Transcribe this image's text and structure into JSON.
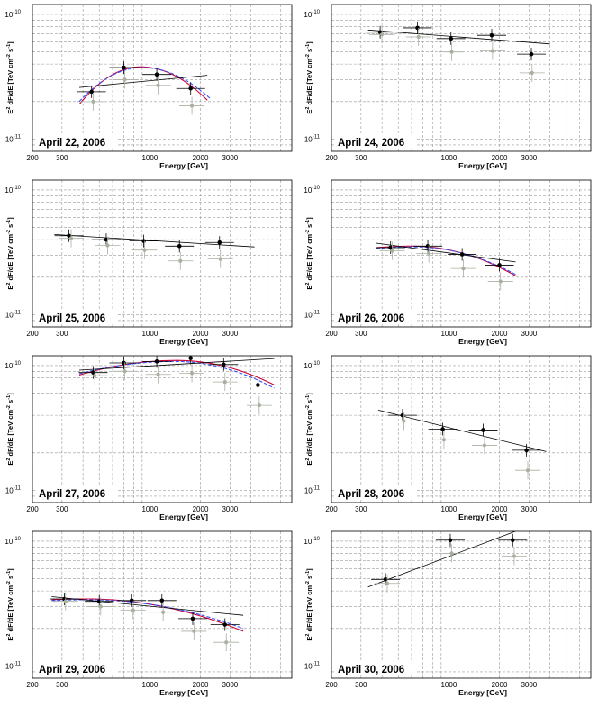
{
  "figure": {
    "ylabel_top": "E",
    "ylabel_sup": "2",
    "ylabel_frac_num": "dF",
    "ylabel_frac_den": "dE",
    "ylabel_units": "[TeV cm",
    "ylabel_units_sup": "-2",
    "ylabel_units_mid": " s",
    "ylabel_units_sup2": "-1",
    "ylabel_units_end": "]",
    "ytick_top": "10",
    "ytick_top_exp": "-10",
    "ytick_bottom": "10",
    "ytick_bottom_exp": "-11"
  },
  "chart_data": [
    {
      "type": "scatter",
      "title": "April 22, 2006",
      "xlabel": "Energy [GeV]",
      "xscale": "log",
      "yscale": "log",
      "xlim": [
        200,
        7000
      ],
      "ylim": [
        8e-12,
        1.2e-10
      ],
      "xticks": [
        "200",
        "300",
        "1000",
        "2000",
        "3000"
      ],
      "series": [
        {
          "role": "black",
          "x": [
            450,
            700,
            1100,
            1750
          ],
          "y": [
            2.4e-11,
            3.75e-11,
            3.3e-11,
            2.55e-11
          ]
        },
        {
          "role": "grey",
          "x": [
            460,
            710,
            1120,
            1780
          ],
          "y": [
            2e-11,
            3e-11,
            2.7e-11,
            1.85e-11
          ]
        }
      ],
      "fits": [
        {
          "kind": "curved",
          "color": "#cc0033",
          "x": [
            380,
            2200
          ],
          "peak_x": 880,
          "peak_y": 3.8e-11,
          "edge_y": [
            1.9e-11,
            2.05e-11
          ]
        },
        {
          "kind": "curved-dashed",
          "color": "#3355ff",
          "x": [
            380,
            2300
          ],
          "peak_x": 900,
          "peak_y": 3.75e-11,
          "edge_y": [
            2e-11,
            2.1e-11
          ]
        },
        {
          "kind": "power",
          "color": "#000000",
          "x": [
            380,
            2200
          ],
          "y": [
            2.6e-11,
            3.25e-11
          ]
        }
      ]
    },
    {
      "type": "scatter",
      "title": "April 24, 2006",
      "xlabel": "Energy [GeV]",
      "xscale": "log",
      "yscale": "log",
      "xlim": [
        200,
        7000
      ],
      "ylim": [
        8e-12,
        1.2e-10
      ],
      "xticks": [
        "200",
        "300",
        "1000",
        "2000",
        "3000"
      ],
      "series": [
        {
          "role": "black",
          "x": [
            390,
            650,
            1030,
            1800,
            3100
          ],
          "y": [
            7.2e-11,
            7.8e-11,
            6.4e-11,
            6.8e-11,
            4.8e-11
          ]
        },
        {
          "role": "grey",
          "x": [
            400,
            660,
            1040,
            1820,
            3130
          ],
          "y": [
            6.9e-11,
            6.6e-11,
            5e-11,
            5.1e-11,
            3.4e-11
          ]
        }
      ],
      "fits": [
        {
          "kind": "power",
          "color": "#000000",
          "x": [
            330,
            4000
          ],
          "y": [
            7.5e-11,
            5.8e-11
          ]
        }
      ]
    },
    {
      "type": "scatter",
      "title": "April 25, 2006",
      "xlabel": "Energy [GeV]",
      "xscale": "log",
      "yscale": "log",
      "xlim": [
        200,
        7000
      ],
      "ylim": [
        8e-12,
        1.2e-10
      ],
      "xticks": [
        "200",
        "300",
        "1000",
        "2000",
        "3000"
      ],
      "series": [
        {
          "role": "black",
          "x": [
            330,
            550,
            920,
            1500,
            2600
          ],
          "y": [
            4.3e-11,
            4e-11,
            3.9e-11,
            3.55e-11,
            3.8e-11
          ]
        },
        {
          "role": "grey",
          "x": [
            340,
            560,
            930,
            1520,
            2630
          ],
          "y": [
            4.1e-11,
            3.6e-11,
            3.3e-11,
            2.7e-11,
            2.8e-11
          ]
        }
      ],
      "fits": [
        {
          "kind": "power",
          "color": "#000000",
          "x": [
            270,
            4200
          ],
          "y": [
            4.4e-11,
            3.5e-11
          ]
        }
      ]
    },
    {
      "type": "scatter",
      "title": "April 26, 2006",
      "xlabel": "Energy [GeV]",
      "xscale": "log",
      "yscale": "log",
      "xlim": [
        200,
        7000
      ],
      "ylim": [
        8e-12,
        1.2e-10
      ],
      "xticks": [
        "200",
        "300",
        "1000",
        "2000",
        "3000"
      ],
      "series": [
        {
          "role": "black",
          "x": [
            450,
            750,
            1200,
            2000
          ],
          "y": [
            3.45e-11,
            3.55e-11,
            3.05e-11,
            2.5e-11
          ]
        },
        {
          "role": "grey",
          "x": [
            460,
            760,
            1220,
            2030
          ],
          "y": [
            3.25e-11,
            3.1e-11,
            2.35e-11,
            1.85e-11
          ]
        }
      ],
      "fits": [
        {
          "kind": "curved",
          "color": "#cc0033",
          "x": [
            370,
            2500
          ],
          "peak_x": 600,
          "peak_y": 3.55e-11,
          "edge_y": [
            3.45e-11,
            2.05e-11
          ]
        },
        {
          "kind": "curved-dashed",
          "color": "#3355ff",
          "x": [
            370,
            2500
          ],
          "peak_x": 620,
          "peak_y": 3.5e-11,
          "edge_y": [
            3.4e-11,
            2.1e-11
          ]
        },
        {
          "kind": "power",
          "color": "#000000",
          "x": [
            370,
            2500
          ],
          "y": [
            3.75e-11,
            2.65e-11
          ]
        }
      ]
    },
    {
      "type": "scatter",
      "title": "April 27, 2006",
      "xlabel": "Energy [GeV]",
      "xscale": "log",
      "yscale": "log",
      "xlim": [
        200,
        7000
      ],
      "ylim": [
        8e-12,
        1.2e-10
      ],
      "xticks": [
        "200",
        "300",
        "1000",
        "2000",
        "3000"
      ],
      "series": [
        {
          "role": "black",
          "x": [
            460,
            700,
            1100,
            1750,
            2750,
            4400
          ],
          "y": [
            8.8e-11,
            1.05e-10,
            1.08e-10,
            1.15e-10,
            1.02e-10,
            7e-11
          ]
        },
        {
          "role": "grey",
          "x": [
            470,
            710,
            1120,
            1780,
            2800,
            4480
          ],
          "y": [
            8.3e-11,
            9e-11,
            8.5e-11,
            8.7e-11,
            7.4e-11,
            4.8e-11
          ]
        }
      ],
      "fits": [
        {
          "kind": "curved",
          "color": "#cc0033",
          "x": [
            380,
            5500
          ],
          "peak_x": 1450,
          "peak_y": 1.1e-10,
          "edge_y": [
            8.4e-11,
            7e-11
          ]
        },
        {
          "kind": "curved-dashed",
          "color": "#3355ff",
          "x": [
            380,
            5500
          ],
          "peak_x": 1400,
          "peak_y": 1.08e-10,
          "edge_y": [
            8.6e-11,
            6.6e-11
          ]
        },
        {
          "kind": "power",
          "color": "#000000",
          "x": [
            380,
            5500
          ],
          "y": [
            9.2e-11,
            1.14e-10
          ]
        }
      ]
    },
    {
      "type": "scatter",
      "title": "April 28, 2006",
      "xlabel": "Energy [GeV]",
      "xscale": "log",
      "yscale": "log",
      "xlim": [
        200,
        7000
      ],
      "ylim": [
        8e-12,
        1.2e-10
      ],
      "xticks": [
        "200",
        "300",
        "1000",
        "2000",
        "3000"
      ],
      "series": [
        {
          "role": "black",
          "x": [
            530,
            920,
            1600,
            2900
          ],
          "y": [
            4e-11,
            3.1e-11,
            3.05e-11,
            2.1e-11
          ]
        },
        {
          "role": "grey",
          "x": [
            540,
            935,
            1630,
            2950
          ],
          "y": [
            3.6e-11,
            2.55e-11,
            2.3e-11,
            1.45e-11
          ]
        }
      ],
      "fits": [
        {
          "kind": "power",
          "color": "#000000",
          "x": [
            380,
            3800
          ],
          "y": [
            4.4e-11,
            2.05e-11
          ]
        }
      ]
    },
    {
      "type": "scatter",
      "title": "April 29, 2006",
      "xlabel": "Energy [GeV]",
      "xscale": "log",
      "yscale": "log",
      "xlim": [
        200,
        7000
      ],
      "ylim": [
        8e-12,
        1.2e-10
      ],
      "xticks": [
        "200",
        "300",
        "1000",
        "2000",
        "3000"
      ],
      "series": [
        {
          "role": "black",
          "x": [
            310,
            500,
            780,
            1180,
            1800,
            2800
          ],
          "y": [
            3.45e-11,
            3.3e-11,
            3.35e-11,
            3.35e-11,
            2.4e-11,
            2.15e-11
          ]
        },
        {
          "role": "grey",
          "x": [
            315,
            510,
            795,
            1200,
            1830,
            2850
          ],
          "y": [
            3.3e-11,
            3e-11,
            2.8e-11,
            2.7e-11,
            1.9e-11,
            1.55e-11
          ]
        }
      ],
      "fits": [
        {
          "kind": "curved",
          "color": "#cc0033",
          "x": [
            260,
            3600
          ],
          "peak_x": 420,
          "peak_y": 3.45e-11,
          "edge_y": [
            3.4e-11,
            1.9e-11
          ]
        },
        {
          "kind": "curved-dashed",
          "color": "#3355ff",
          "x": [
            260,
            3600
          ],
          "peak_x": 430,
          "peak_y": 3.4e-11,
          "edge_y": [
            3.35e-11,
            2e-11
          ]
        },
        {
          "kind": "power",
          "color": "#000000",
          "x": [
            260,
            3600
          ],
          "y": [
            3.6e-11,
            2.55e-11
          ]
        }
      ]
    },
    {
      "type": "scatter",
      "title": "April 30, 2006",
      "xlabel": "Energy [GeV]",
      "xscale": "log",
      "yscale": "log",
      "xlim": [
        200,
        7000
      ],
      "ylim": [
        8e-12,
        1.2e-10
      ],
      "xticks": [
        "200",
        "300",
        "1000",
        "2000",
        "3000"
      ],
      "series": [
        {
          "role": "black",
          "x": [
            420,
            1020,
            2400
          ],
          "y": [
            4.95e-11,
            1.02e-10,
            1.02e-10
          ]
        },
        {
          "role": "grey",
          "x": [
            430,
            1040,
            2450
          ],
          "y": [
            4.6e-11,
            8e-11,
            7.6e-11
          ]
        }
      ],
      "fits": [
        {
          "kind": "power",
          "color": "#000000",
          "x": [
            330,
            2700
          ],
          "y": [
            4.3e-11,
            1.25e-10
          ]
        }
      ]
    }
  ]
}
